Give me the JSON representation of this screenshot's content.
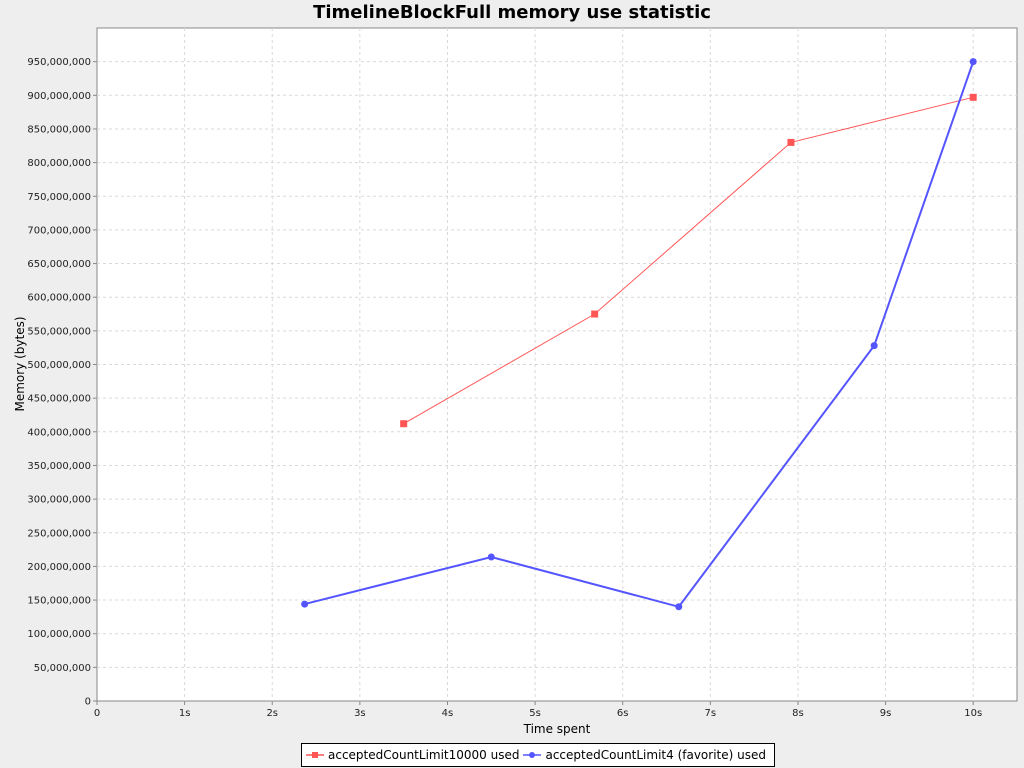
{
  "chart_data": {
    "type": "line",
    "title": "TimelineBlockFull memory use statistic",
    "xlabel": "Time spent",
    "ylabel": "Memory (bytes)",
    "xlim": [
      0,
      10.5
    ],
    "ylim": [
      0,
      1000000000
    ],
    "x_ticks": [
      {
        "value": 0,
        "label": "0"
      },
      {
        "value": 1,
        "label": "1s"
      },
      {
        "value": 2,
        "label": "2s"
      },
      {
        "value": 3,
        "label": "3s"
      },
      {
        "value": 4,
        "label": "4s"
      },
      {
        "value": 5,
        "label": "5s"
      },
      {
        "value": 6,
        "label": "6s"
      },
      {
        "value": 7,
        "label": "7s"
      },
      {
        "value": 8,
        "label": "8s"
      },
      {
        "value": 9,
        "label": "9s"
      },
      {
        "value": 10,
        "label": "10s"
      }
    ],
    "y_ticks": [
      {
        "value": 0,
        "label": "0"
      },
      {
        "value": 50000000,
        "label": "50,000,000"
      },
      {
        "value": 100000000,
        "label": "100,000,000"
      },
      {
        "value": 150000000,
        "label": "150,000,000"
      },
      {
        "value": 200000000,
        "label": "200,000,000"
      },
      {
        "value": 250000000,
        "label": "250,000,000"
      },
      {
        "value": 300000000,
        "label": "300,000,000"
      },
      {
        "value": 350000000,
        "label": "350,000,000"
      },
      {
        "value": 400000000,
        "label": "400,000,000"
      },
      {
        "value": 450000000,
        "label": "450,000,000"
      },
      {
        "value": 500000000,
        "label": "500,000,000"
      },
      {
        "value": 550000000,
        "label": "550,000,000"
      },
      {
        "value": 600000000,
        "label": "600,000,000"
      },
      {
        "value": 650000000,
        "label": "650,000,000"
      },
      {
        "value": 700000000,
        "label": "700,000,000"
      },
      {
        "value": 750000000,
        "label": "750,000,000"
      },
      {
        "value": 800000000,
        "label": "800,000,000"
      },
      {
        "value": 850000000,
        "label": "850,000,000"
      },
      {
        "value": 900000000,
        "label": "900,000,000"
      },
      {
        "value": 950000000,
        "label": "950,000,000"
      }
    ],
    "grid": true,
    "legend_position": "bottom",
    "series": [
      {
        "name": "acceptedCountLimit10000 used",
        "color": "#ff5555",
        "marker": "square",
        "points": [
          {
            "x": 3.5,
            "y": 412000000
          },
          {
            "x": 5.68,
            "y": 575000000
          },
          {
            "x": 7.92,
            "y": 830000000
          },
          {
            "x": 10.0,
            "y": 897000000
          }
        ]
      },
      {
        "name": "acceptedCountLimit4 (favorite) used",
        "color": "#5555ff",
        "marker": "circle",
        "points": [
          {
            "x": 2.37,
            "y": 144000000
          },
          {
            "x": 4.5,
            "y": 214000000
          },
          {
            "x": 6.64,
            "y": 140000000
          },
          {
            "x": 8.87,
            "y": 528000000
          },
          {
            "x": 10.0,
            "y": 950000000
          }
        ]
      }
    ]
  }
}
